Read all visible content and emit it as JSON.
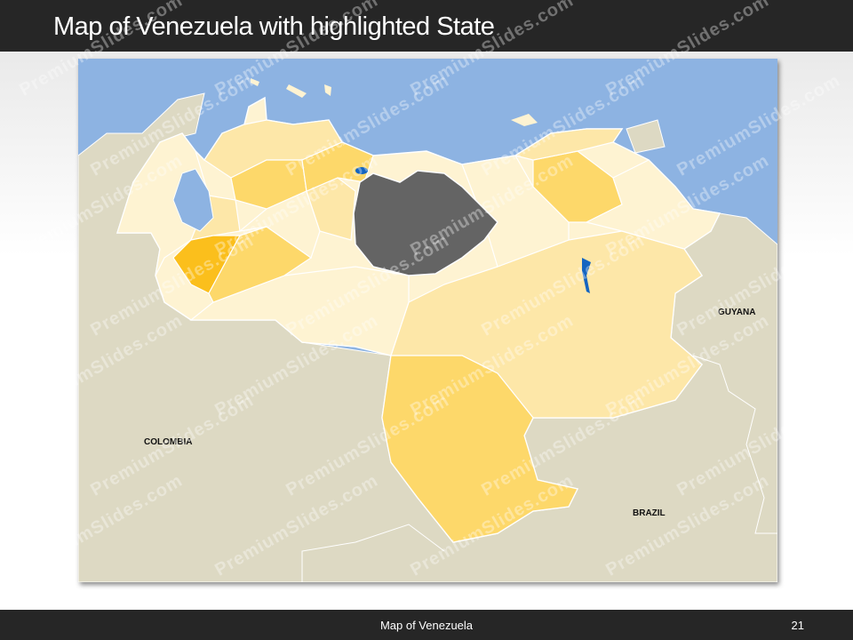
{
  "header": {
    "title": "Map of Venezuela with highlighted State"
  },
  "footer": {
    "text": "Map of Venezuela",
    "page_number": "21"
  },
  "map": {
    "labels": {
      "colombia": "COLOMBIA",
      "guyana": "GUYANA",
      "brazil": "BRAZIL"
    },
    "colors": {
      "sea": "#8db3e2",
      "land": "#ddd9c3",
      "highlight": "#646464",
      "state_light": "#fef3d2",
      "state_mid": "#fde7a8",
      "state_dark": "#fdd86a",
      "state_accent": "#fbbf1c",
      "water": "#1565c0"
    }
  },
  "watermark": "PremiumSlides.com"
}
